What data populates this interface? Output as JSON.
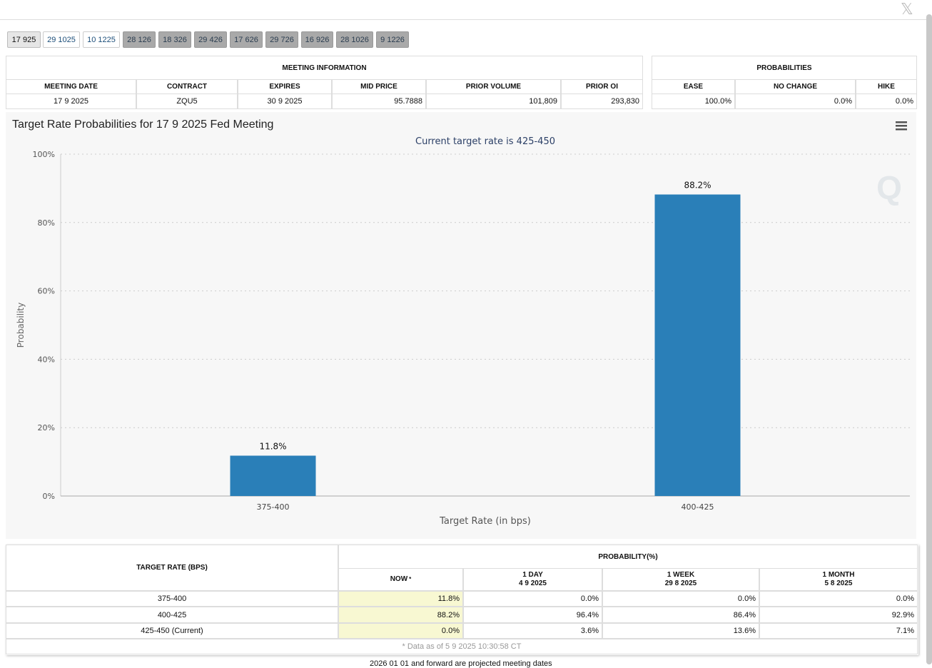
{
  "tabs": [
    "17 925",
    "29 1025",
    "10 1225",
    "28 126",
    "18 326",
    "29 426",
    "17 626",
    "29 726",
    "16 926",
    "28 1026",
    "9 1226"
  ],
  "meeting_info": {
    "title": "MEETING INFORMATION",
    "headers": [
      "MEETING DATE",
      "CONTRACT",
      "EXPIRES",
      "MID PRICE",
      "PRIOR VOLUME",
      "PRIOR OI"
    ],
    "row": [
      "17 9 2025",
      "ZQU5",
      "30 9 2025",
      "95.7888",
      "101,809",
      "293,830"
    ]
  },
  "probabilities": {
    "title": "PROBABILITIES",
    "headers": [
      "EASE",
      "NO CHANGE",
      "HIKE"
    ],
    "row": [
      "100.0%",
      "0.0%",
      "0.0%"
    ]
  },
  "chart_data": {
    "type": "bar",
    "title": "Target Rate Probabilities for 17 9 2025 Fed Meeting",
    "subtitle": "Current target rate is 425-450",
    "categories": [
      "375-400",
      "400-425"
    ],
    "values": [
      11.8,
      88.2
    ],
    "value_labels": [
      "11.8%",
      "88.2%"
    ],
    "color": "#2a7fb8",
    "ylim": [
      0,
      100
    ],
    "yticks": [
      {
        "value": 0,
        "label": "0%"
      },
      {
        "value": 20,
        "label": "20%"
      },
      {
        "value": 40,
        "label": "40%"
      },
      {
        "value": 60,
        "label": "60%"
      },
      {
        "value": 80,
        "label": "80%"
      },
      {
        "value": 100,
        "label": "100%"
      }
    ],
    "xlabel": "Target Rate (in bps)",
    "ylabel": "Probability",
    "grid": true
  },
  "rate_table": {
    "header": "TARGET RATE (BPS)",
    "group": "PROBABILITY(%)",
    "columns": [
      {
        "name": "NOW",
        "note": "*"
      },
      {
        "name": "1 DAY",
        "date": "4 9 2025"
      },
      {
        "name": "1 WEEK",
        "date": "29 8 2025"
      },
      {
        "name": "1 MONTH",
        "date": "5 8 2025"
      }
    ],
    "rows": [
      [
        "375-400",
        "11.8%",
        "0.0%",
        "0.0%",
        "0.0%"
      ],
      [
        "400-425",
        "88.2%",
        "96.4%",
        "86.4%",
        "92.9%"
      ],
      [
        "425-450 (Current)",
        "0.0%",
        "3.6%",
        "13.6%",
        "7.1%"
      ]
    ],
    "footnote": "* Data as of 5 9 2025 10:30:58 CT"
  },
  "bottom_note": "2026 01 01 and forward are projected meeting dates"
}
